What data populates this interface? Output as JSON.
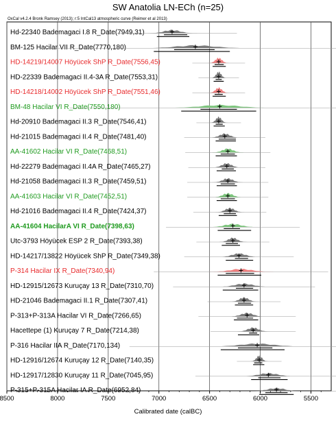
{
  "chart_data": {
    "type": "ridgeline",
    "title": "SW Anatolia LN-ECh (n=25)",
    "subtitle": "OxCal v4.2.4 Bronk Ramsey (2013); r:5 IntCal13 atmospheric curve (Reimer et al 2013)",
    "xlabel": "Calibrated date (calBC)",
    "xlim": [
      8500,
      5300
    ],
    "x_reversed": true,
    "xticks": [
      8500,
      8000,
      7500,
      7000,
      6500,
      6000,
      5500
    ],
    "xtick_labels": [
      "8500",
      "8000",
      "7500",
      "7000",
      "6500",
      "6000",
      "5500"
    ],
    "grid": true,
    "colors": {
      "default": "#000000",
      "red": "#e8292b",
      "green": "#1e9a1e",
      "fill_default": "#7a7a7a",
      "fill_red": "#ee7d7d",
      "fill_green": "#7dc57d"
    },
    "rows": [
      {
        "label": "Hd-22340 Bademagaci I.8 R_Date(7949,31)",
        "color": "default",
        "bold": false,
        "median": 6870,
        "r68": [
          6950,
          6720
        ],
        "r95": [
          7020,
          6700
        ]
      },
      {
        "label": "BM-125 Hacilar VII R_Date(7770,180)",
        "color": "default",
        "bold": false,
        "median": 6640,
        "r68": [
          6850,
          6450
        ],
        "r95": [
          7050,
          6300
        ]
      },
      {
        "label": "HD-14219/14007 Höyücek ShP R_Date(7556,45)",
        "color": "red",
        "bold": false,
        "median": 6410,
        "r68": [
          6450,
          6360
        ],
        "r95": [
          6470,
          6340
        ]
      },
      {
        "label": "HD-22339 Bademagaci II.4-3A R_Date(7553,31)",
        "color": "default",
        "bold": false,
        "median": 6410,
        "r68": [
          6440,
          6380
        ],
        "r95": [
          6460,
          6360
        ]
      },
      {
        "label": "HD-14218/14002 Höyücek ShP R_Date(7551,46)",
        "color": "red",
        "bold": false,
        "median": 6410,
        "r68": [
          6450,
          6370
        ],
        "r95": [
          6470,
          6340
        ]
      },
      {
        "label": "BM-48 Hacilar VI R_Date(7550,180)",
        "color": "green",
        "bold": false,
        "median": 6400,
        "r68": [
          6590,
          6230
        ],
        "r95": [
          6780,
          6040
        ]
      },
      {
        "label": "Hd-20910 Bademagaci II.3 R_Date(7546,41)",
        "color": "default",
        "bold": false,
        "median": 6410,
        "r68": [
          6440,
          6370
        ],
        "r95": [
          6460,
          6350
        ]
      },
      {
        "label": "Hd-21015 Bademagaci II.4 R_Date(7481,40)",
        "color": "default",
        "bold": false,
        "median": 6350,
        "r68": [
          6410,
          6240
        ],
        "r95": [
          6440,
          6240
        ]
      },
      {
        "label": "AA-41602 Hacilar VI R_Date(7468,51)",
        "color": "green",
        "bold": false,
        "median": 6320,
        "r68": [
          6390,
          6250
        ],
        "r95": [
          6440,
          6230
        ]
      },
      {
        "label": "Hd-22279 Bademagaci II.4A R_Date(7465,27)",
        "color": "default",
        "bold": false,
        "median": 6330,
        "r68": [
          6380,
          6260
        ],
        "r95": [
          6430,
          6240
        ]
      },
      {
        "label": "Hd-21058 Bademagaci II.3 R_Date(7459,51)",
        "color": "default",
        "bold": false,
        "median": 6320,
        "r68": [
          6390,
          6250
        ],
        "r95": [
          6430,
          6230
        ]
      },
      {
        "label": "AA-41603 Hacilar VI R_Date(7452,51)",
        "color": "green",
        "bold": false,
        "median": 6320,
        "r68": [
          6390,
          6250
        ],
        "r95": [
          6430,
          6230
        ]
      },
      {
        "label": "Hd-21016 Bademagaci II.4 R_Date(7424,37)",
        "color": "default",
        "bold": false,
        "median": 6300,
        "r68": [
          6360,
          6240
        ],
        "r95": [
          6410,
          6230
        ]
      },
      {
        "label": "AA-41604 HacilarA VI R_Date(7398,63)",
        "color": "green",
        "bold": true,
        "median": 6270,
        "r68": [
          6360,
          6200
        ],
        "r95": [
          6420,
          6090
        ]
      },
      {
        "label": "Utc-3793 Höyücek ESP 2 R_Date(7393,38)",
        "color": "default",
        "bold": false,
        "median": 6270,
        "r68": [
          6340,
          6220
        ],
        "r95": [
          6380,
          6200
        ]
      },
      {
        "label": "HD-14217/13822 Höyücek ShP R_Date(7349,38)",
        "color": "default",
        "bold": false,
        "median": 6210,
        "r68": [
          6250,
          6120
        ],
        "r95": [
          6340,
          6070
        ]
      },
      {
        "label": "P-314 Hacilar IX R_Date(7340,94)",
        "color": "red",
        "bold": false,
        "median": 6190,
        "r68": [
          6340,
          6060
        ],
        "r95": [
          6420,
          5990
        ]
      },
      {
        "label": "HD-12915/12673 Kuruçay 13 R_Date(7310,70)",
        "color": "default",
        "bold": false,
        "median": 6160,
        "r68": [
          6240,
          6070
        ],
        "r95": [
          6370,
          6020
        ]
      },
      {
        "label": "HD-21046 Bademagaci II.1 R_Date(7307,41)",
        "color": "default",
        "bold": false,
        "median": 6160,
        "r68": [
          6220,
          6090
        ],
        "r95": [
          6250,
          6070
        ]
      },
      {
        "label": "P-313+P-313A Hacilar VI R_Date(7266,65)",
        "color": "default",
        "bold": false,
        "median": 6130,
        "r68": [
          6230,
          6070
        ],
        "r95": [
          6260,
          6020
        ]
      },
      {
        "label": "Hacettepe (1) Kuruçay 7 R_Date(7214,38)",
        "color": "default",
        "bold": false,
        "median": 6070,
        "r68": [
          6110,
          6030
        ],
        "r95": [
          6220,
          6010
        ]
      },
      {
        "label": "P-316 Hacilar IIA R_Date(7170,134)",
        "color": "default",
        "bold": false,
        "median": 6030,
        "r68": [
          6220,
          5880
        ],
        "r95": [
          6390,
          5760
        ]
      },
      {
        "label": "HD-12916/12674 Kuruçay 12 R_Date(7140,35)",
        "color": "default",
        "bold": false,
        "median": 6010,
        "r68": [
          6060,
          5980
        ],
        "r95": [
          6070,
          5960
        ]
      },
      {
        "label": "HD-12917/12830 Kuruçay 11 R_Date(7045,95)",
        "color": "default",
        "bold": false,
        "median": 5920,
        "r68": [
          6020,
          5800
        ],
        "r95": [
          6090,
          5730
        ]
      },
      {
        "label": "P-315+P-315A Hacilar IA R_Date(6952,84)",
        "color": "default",
        "bold": false,
        "median": 5840,
        "r68": [
          5950,
          5730
        ],
        "r95": [
          6010,
          5670
        ]
      }
    ]
  }
}
